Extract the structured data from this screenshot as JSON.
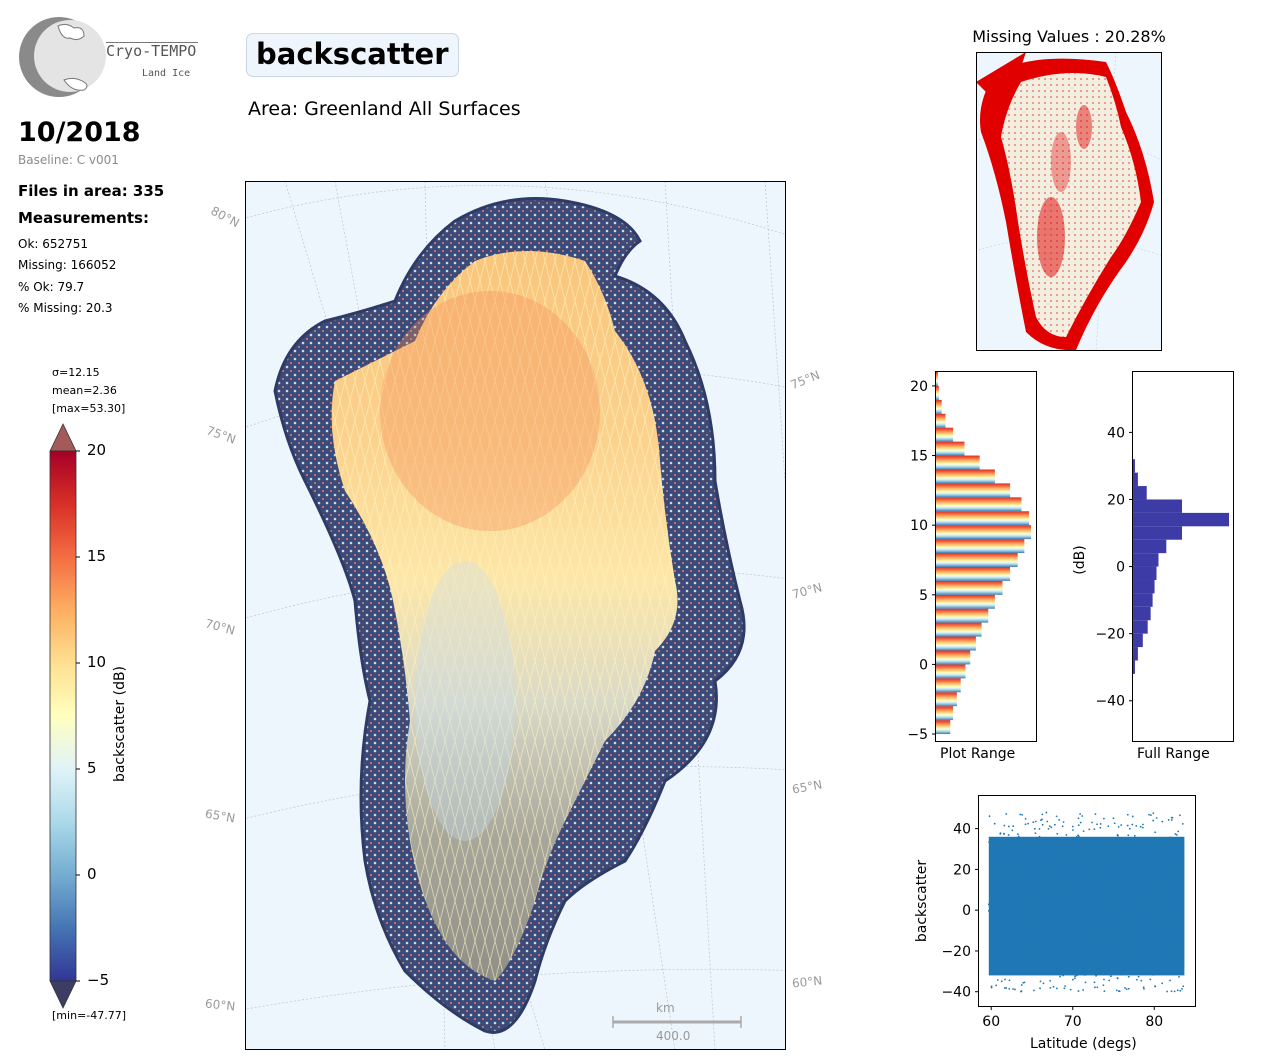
{
  "header": {
    "logo": {
      "title": "Cryo-TEMPO",
      "subtitle": "Land Ice"
    },
    "period": "10/2018",
    "baseline": "Baseline: C v001",
    "files_in_area": "Files in area: 335",
    "measurements_title": "Measurements:",
    "stats": {
      "ok": "Ok: 652751",
      "missing": "Missing: 166052",
      "pct_ok": "% Ok: 79.7",
      "pct_missing": "% Missing: 20.3"
    },
    "variable": "backscatter",
    "area": "Area: Greenland All Surfaces"
  },
  "colors": {
    "ocean": "#eef6fd",
    "land": "#f2efe1",
    "missing": "#e00000",
    "hist_full": "#3d3ca6",
    "scatter": "#1f77b4",
    "low": "#313695",
    "high": "#a50026"
  },
  "colorbar": {
    "label": "backscatter (dB)",
    "ticks": [
      "20",
      "15",
      "10",
      "5",
      "0",
      "−5"
    ],
    "sigma": "σ=12.15",
    "mean": "mean=2.36",
    "max": "[max=53.30]",
    "min": "[min=-47.77]"
  },
  "main_map": {
    "lat_labels_left": [
      "80°N",
      "75°N",
      "70°N",
      "65°N",
      "60°N"
    ],
    "lat_labels_right": [
      "75°N",
      "70°N",
      "65°N",
      "60°N"
    ],
    "scalebar": {
      "unit": "km",
      "value": "400.0"
    }
  },
  "chart_data": [
    {
      "type": "heatmap",
      "title": "Missing Values : 20.28%",
      "description_values": {
        "missing_percent": 20.28
      }
    },
    {
      "type": "bar",
      "orientation": "horizontal",
      "xlabel": "Plot Range",
      "ylabel": "",
      "ylim": [
        -5.5,
        21
      ],
      "yticks": [
        "20",
        "15",
        "10",
        "5",
        "0",
        "−5"
      ],
      "bins": [
        -5,
        -4,
        -3,
        -2,
        -1,
        0,
        1,
        2,
        3,
        4,
        5,
        6,
        7,
        8,
        9,
        10,
        11,
        12,
        13,
        14,
        15,
        16,
        17,
        18,
        19,
        20
      ],
      "counts": [
        0.15,
        0.18,
        0.22,
        0.26,
        0.31,
        0.36,
        0.42,
        0.48,
        0.55,
        0.62,
        0.7,
        0.78,
        0.86,
        0.93,
        1.0,
        0.98,
        0.9,
        0.78,
        0.62,
        0.46,
        0.3,
        0.18,
        0.1,
        0.06,
        0.03,
        0.02
      ]
    },
    {
      "type": "bar",
      "orientation": "horizontal",
      "xlabel": "Full Range",
      "ylabel": "(dB)",
      "ylim": [
        -52,
        58
      ],
      "yticks": [
        "40",
        "20",
        "0",
        "−20",
        "−40"
      ],
      "bins": [
        -32,
        -28,
        -24,
        -20,
        -16,
        -12,
        -8,
        -4,
        0,
        4,
        8,
        12,
        16,
        20,
        24,
        28
      ],
      "counts": [
        0.02,
        0.05,
        0.1,
        0.15,
        0.18,
        0.2,
        0.22,
        0.24,
        0.26,
        0.34,
        0.5,
        0.98,
        0.5,
        0.14,
        0.05,
        0.02
      ]
    },
    {
      "type": "scatter",
      "xlabel": "Latitude (degs)",
      "ylabel": "backscatter",
      "xlim": [
        58.5,
        85
      ],
      "ylim": [
        -47,
        56
      ],
      "xticks": [
        "60",
        "70",
        "80"
      ],
      "yticks": [
        "40",
        "20",
        "0",
        "−20",
        "−40"
      ],
      "x_range": [
        59.7,
        83.7
      ],
      "y_range": [
        -40,
        48
      ]
    }
  ]
}
